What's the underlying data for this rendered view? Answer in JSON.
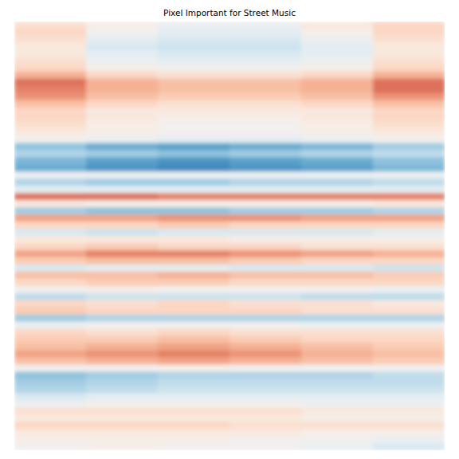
{
  "chart_data": {
    "type": "heatmap",
    "title": "Pixel Important for Street Music",
    "zlim": [
      -1,
      1
    ],
    "tick_labels": false,
    "cells": [
      [
        0.15,
        0.05,
        -0.05,
        -0.05,
        0.1,
        0.2
      ],
      [
        0.2,
        0.0,
        -0.1,
        -0.1,
        0.05,
        0.2
      ],
      [
        0.15,
        -0.1,
        -0.15,
        -0.15,
        -0.05,
        0.15
      ],
      [
        0.1,
        -0.15,
        -0.2,
        -0.2,
        -0.1,
        0.1
      ],
      [
        0.1,
        -0.1,
        -0.15,
        -0.15,
        -0.1,
        0.1
      ],
      [
        0.15,
        -0.05,
        -0.1,
        -0.1,
        -0.05,
        0.15
      ],
      [
        0.2,
        0.05,
        0.0,
        0.0,
        0.05,
        0.2
      ],
      [
        0.35,
        0.2,
        0.15,
        0.15,
        0.2,
        0.35
      ],
      [
        0.55,
        0.35,
        0.3,
        0.3,
        0.35,
        0.55
      ],
      [
        0.5,
        0.35,
        0.3,
        0.3,
        0.35,
        0.55
      ],
      [
        0.45,
        0.3,
        0.25,
        0.25,
        0.3,
        0.45
      ],
      [
        0.3,
        0.2,
        0.15,
        0.15,
        0.2,
        0.3
      ],
      [
        0.2,
        0.1,
        0.1,
        0.1,
        0.1,
        0.2
      ],
      [
        0.2,
        0.1,
        0.05,
        0.05,
        0.1,
        0.2
      ],
      [
        0.15,
        0.05,
        0.0,
        0.0,
        0.05,
        0.15
      ],
      [
        0.1,
        0.05,
        0.0,
        0.0,
        0.05,
        0.1
      ],
      [
        0.0,
        -0.05,
        -0.1,
        -0.1,
        -0.05,
        0.0
      ],
      [
        -0.4,
        -0.5,
        -0.55,
        -0.5,
        -0.45,
        -0.35
      ],
      [
        -0.3,
        -0.35,
        -0.4,
        -0.35,
        -0.3,
        -0.25
      ],
      [
        -0.45,
        -0.55,
        -0.6,
        -0.55,
        -0.5,
        -0.4
      ],
      [
        -0.5,
        -0.6,
        -0.65,
        -0.6,
        -0.55,
        -0.45
      ],
      [
        -0.05,
        -0.05,
        -0.05,
        -0.05,
        -0.05,
        -0.05
      ],
      [
        -0.3,
        -0.35,
        -0.35,
        -0.3,
        -0.3,
        -0.25
      ],
      [
        -0.1,
        -0.1,
        -0.1,
        -0.1,
        -0.1,
        -0.1
      ],
      [
        0.55,
        0.55,
        0.5,
        0.5,
        0.5,
        0.5
      ],
      [
        0.1,
        0.05,
        0.05,
        0.05,
        0.05,
        0.1
      ],
      [
        -0.35,
        -0.4,
        -0.4,
        -0.35,
        -0.35,
        -0.3
      ],
      [
        0.4,
        0.4,
        0.45,
        0.45,
        0.4,
        0.4
      ],
      [
        0.2,
        0.2,
        0.25,
        0.2,
        0.2,
        0.2
      ],
      [
        -0.15,
        -0.2,
        -0.15,
        -0.15,
        -0.15,
        -0.1
      ],
      [
        0.1,
        0.1,
        0.1,
        0.05,
        0.05,
        0.05
      ],
      [
        0.2,
        0.25,
        0.2,
        0.2,
        0.15,
        0.15
      ],
      [
        0.4,
        0.5,
        0.5,
        0.45,
        0.4,
        0.35
      ],
      [
        0.25,
        0.3,
        0.3,
        0.25,
        0.2,
        0.2
      ],
      [
        -0.15,
        -0.1,
        -0.1,
        -0.15,
        -0.15,
        -0.2
      ],
      [
        0.3,
        0.3,
        0.35,
        0.3,
        0.3,
        0.25
      ],
      [
        0.2,
        0.25,
        0.25,
        0.2,
        0.2,
        0.2
      ],
      [
        0.0,
        0.05,
        0.0,
        0.0,
        0.0,
        -0.05
      ],
      [
        -0.25,
        -0.2,
        -0.2,
        -0.2,
        -0.25,
        -0.25
      ],
      [
        0.2,
        0.15,
        0.2,
        0.15,
        0.15,
        0.1
      ],
      [
        0.25,
        0.2,
        0.2,
        0.2,
        0.15,
        0.15
      ],
      [
        -0.35,
        -0.3,
        -0.3,
        -0.3,
        -0.3,
        -0.3
      ],
      [
        -0.05,
        0.0,
        0.0,
        0.0,
        -0.05,
        -0.05
      ],
      [
        0.2,
        0.15,
        0.2,
        0.15,
        0.15,
        0.15
      ],
      [
        0.25,
        0.25,
        0.3,
        0.25,
        0.2,
        0.2
      ],
      [
        0.3,
        0.35,
        0.4,
        0.35,
        0.3,
        0.25
      ],
      [
        0.4,
        0.45,
        0.5,
        0.45,
        0.35,
        0.3
      ],
      [
        0.3,
        0.35,
        0.4,
        0.35,
        0.3,
        0.25
      ],
      [
        0.0,
        0.0,
        0.05,
        0.0,
        0.0,
        0.0
      ],
      [
        -0.4,
        -0.35,
        -0.3,
        -0.3,
        -0.3,
        -0.25
      ],
      [
        -0.35,
        -0.3,
        -0.25,
        -0.25,
        -0.25,
        -0.25
      ],
      [
        -0.3,
        -0.25,
        -0.2,
        -0.2,
        -0.2,
        -0.2
      ],
      [
        -0.15,
        -0.1,
        -0.1,
        -0.1,
        -0.1,
        -0.1
      ],
      [
        -0.05,
        0.0,
        0.0,
        0.0,
        -0.05,
        -0.05
      ],
      [
        0.15,
        0.15,
        0.15,
        0.15,
        0.1,
        0.1
      ],
      [
        0.1,
        0.1,
        0.1,
        0.1,
        0.05,
        0.05
      ],
      [
        0.2,
        0.2,
        0.2,
        0.15,
        0.15,
        0.15
      ],
      [
        0.1,
        0.1,
        0.1,
        0.1,
        0.05,
        0.05
      ],
      [
        0.05,
        0.05,
        0.05,
        0.0,
        0.0,
        -0.05
      ],
      [
        0.0,
        0.05,
        0.0,
        0.0,
        -0.05,
        -0.15
      ]
    ]
  }
}
